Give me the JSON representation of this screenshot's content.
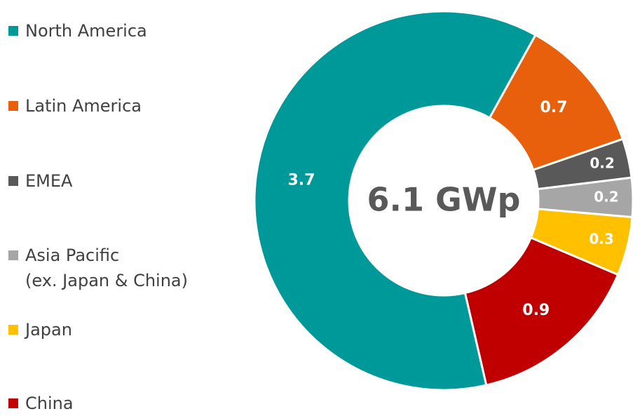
{
  "chart_data": {
    "type": "donut",
    "center_label": "6.1 GWp",
    "series": [
      {
        "name": "North America",
        "color": "#009999",
        "values": [
          3.7
        ]
      },
      {
        "name": "Latin America",
        "color": "#e8600c",
        "values": [
          0.7
        ]
      },
      {
        "name": "EMEA",
        "color": "#595959",
        "values": [
          0.2
        ]
      },
      {
        "name": "Asia Pacific\n(ex. Japan & China)",
        "color": "#a6a6a6",
        "values": [
          0.2
        ]
      },
      {
        "name": "Japan",
        "color": "#ffc000",
        "values": [
          0.3
        ]
      },
      {
        "name": "China",
        "color": "#c00000",
        "values": [
          0.9
        ]
      }
    ],
    "legend": "left"
  }
}
